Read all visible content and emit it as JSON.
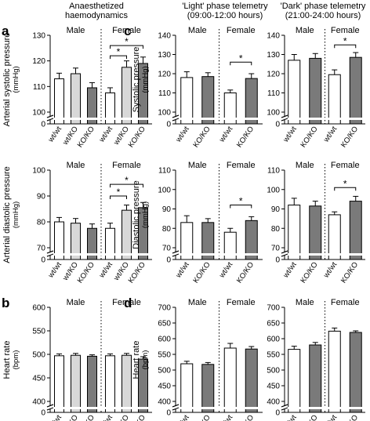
{
  "headers": {
    "col_a": [
      "Anaesthetized",
      "haemodynamics"
    ],
    "col_c_light": [
      "'Light' phase telemetry",
      "(09:00-12:00 hours)"
    ],
    "col_c_dark": [
      "'Dark' phase telemetry",
      "(21:00-24:00 hours)"
    ]
  },
  "colors": {
    "white_bar": "#ffffff",
    "light_bar": "#d8d8d8",
    "dark_bar": "#7a7a7a",
    "axis": "#000000"
  },
  "chart_data": [
    {
      "id": "a-systolic",
      "panel_letter": "a",
      "type": "bar",
      "ylabel": [
        "Arterial systolic pressure",
        "(mmHg)"
      ],
      "ylim": [
        100,
        130
      ],
      "yticks": [
        100,
        110,
        120,
        130
      ],
      "axis_break": true,
      "axis_floor_label": "0",
      "groups": [
        {
          "name": "Male",
          "categories": [
            "wt/wt",
            "wt/KO",
            "KO/KO"
          ],
          "values": [
            113,
            115,
            109.5
          ],
          "errors": [
            2.2,
            2.2,
            2.0
          ],
          "shades": [
            "white",
            "light",
            "dark"
          ]
        },
        {
          "name": "Female",
          "categories": [
            "wt/wt",
            "wt/KO",
            "KO/KO"
          ],
          "values": [
            107.5,
            117.5,
            119
          ],
          "errors": [
            2.0,
            2.5,
            2.5
          ],
          "shades": [
            "white",
            "light",
            "dark"
          ]
        }
      ],
      "significance": [
        {
          "group": 1,
          "from": 0,
          "to": 2,
          "level": 126,
          "label": "*"
        },
        {
          "group": 1,
          "from": 0,
          "to": 1,
          "level": 122,
          "label": "*"
        }
      ]
    },
    {
      "id": "a-diastolic",
      "panel_letter": "",
      "type": "bar",
      "ylabel": [
        "Arterial diastolic pressure",
        "(mmHg)"
      ],
      "ylim": [
        70,
        100
      ],
      "yticks": [
        70,
        80,
        90,
        100
      ],
      "axis_break": true,
      "axis_floor_label": "0",
      "groups": [
        {
          "name": "Male",
          "categories": [
            "wt/wt",
            "wt/KO",
            "KO/KO"
          ],
          "values": [
            80,
            79.5,
            77.5
          ],
          "errors": [
            1.7,
            1.8,
            1.7
          ],
          "shades": [
            "white",
            "light",
            "dark"
          ]
        },
        {
          "name": "Female",
          "categories": [
            "wt/wt",
            "wt/KO",
            "KO/KO"
          ],
          "values": [
            77.5,
            84.5,
            85.5
          ],
          "errors": [
            2.0,
            2.0,
            2.0
          ],
          "shades": [
            "white",
            "light",
            "dark"
          ]
        }
      ],
      "significance": [
        {
          "group": 1,
          "from": 0,
          "to": 2,
          "level": 94.5,
          "label": "*"
        },
        {
          "group": 1,
          "from": 0,
          "to": 1,
          "level": 90,
          "label": "*"
        }
      ]
    },
    {
      "id": "b-heart-rate",
      "panel_letter": "b",
      "type": "bar",
      "ylabel": [
        "Heart rate",
        "(bpm)"
      ],
      "ylim": [
        400,
        600
      ],
      "yticks": [
        400,
        450,
        500,
        550,
        600
      ],
      "axis_break": true,
      "axis_floor_label": "0",
      "groups": [
        {
          "name": "Male",
          "categories": [
            "wt/wt",
            "wt/KO",
            "KO/KO"
          ],
          "values": [
            497,
            498,
            496
          ],
          "errors": [
            4,
            4,
            3
          ],
          "shades": [
            "white",
            "light",
            "dark"
          ]
        },
        {
          "name": "Female",
          "categories": [
            "wt/wt",
            "wt/KO",
            "KO/KO"
          ],
          "values": [
            497,
            498,
            490
          ],
          "errors": [
            4,
            4,
            5
          ],
          "shades": [
            "white",
            "light",
            "dark"
          ]
        }
      ],
      "significance": []
    },
    {
      "id": "c-light-systolic",
      "panel_letter": "c",
      "type": "bar",
      "ylabel": [
        "Systolic pressure",
        "(mmHg)"
      ],
      "ylim": [
        100,
        140
      ],
      "yticks": [
        100,
        110,
        120,
        130,
        140
      ],
      "axis_break": true,
      "axis_floor_label": "0",
      "groups": [
        {
          "name": "Male",
          "categories": [
            "wt/wt",
            "KO/KO"
          ],
          "values": [
            118,
            118.5
          ],
          "errors": [
            3,
            2
          ],
          "shades": [
            "white",
            "dark"
          ]
        },
        {
          "name": "Female",
          "categories": [
            "wt/wt",
            "KO/KO"
          ],
          "values": [
            110,
            117.5
          ],
          "errors": [
            1.5,
            2.5
          ],
          "shades": [
            "white",
            "dark"
          ]
        }
      ],
      "significance": [
        {
          "group": 1,
          "from": 0,
          "to": 1,
          "level": 126,
          "label": "*"
        }
      ]
    },
    {
      "id": "c-dark-systolic",
      "panel_letter": "",
      "type": "bar",
      "ylabel": [],
      "ylim": [
        100,
        140
      ],
      "yticks": [
        100,
        110,
        120,
        130,
        140
      ],
      "axis_break": true,
      "axis_floor_label": "0",
      "groups": [
        {
          "name": "Male",
          "categories": [
            "wt/wt",
            "KO/KO"
          ],
          "values": [
            127,
            128
          ],
          "errors": [
            3,
            2.5
          ],
          "shades": [
            "white",
            "dark"
          ]
        },
        {
          "name": "Female",
          "categories": [
            "wt/wt",
            "KO/KO"
          ],
          "values": [
            119.5,
            128.5
          ],
          "errors": [
            2.5,
            2.5
          ],
          "shades": [
            "white",
            "dark"
          ]
        }
      ],
      "significance": [
        {
          "group": 1,
          "from": 0,
          "to": 1,
          "level": 135,
          "label": "*"
        }
      ]
    },
    {
      "id": "c-light-diastolic",
      "panel_letter": "",
      "type": "bar",
      "ylabel": [
        "Diastolic pressure",
        "(mmHg)"
      ],
      "ylim": [
        70,
        110
      ],
      "yticks": [
        70,
        80,
        90,
        100,
        110
      ],
      "axis_break": true,
      "axis_floor_label": "0",
      "groups": [
        {
          "name": "Male",
          "categories": [
            "wt/wt",
            "KO/KO"
          ],
          "values": [
            83,
            83
          ],
          "errors": [
            3.5,
            2
          ],
          "shades": [
            "white",
            "dark"
          ]
        },
        {
          "name": "Female",
          "categories": [
            "wt/wt",
            "KO/KO"
          ],
          "values": [
            78,
            84
          ],
          "errors": [
            2,
            2
          ],
          "shades": [
            "white",
            "dark"
          ]
        }
      ],
      "significance": [
        {
          "group": 1,
          "from": 0,
          "to": 1,
          "level": 92,
          "label": "*"
        }
      ]
    },
    {
      "id": "c-dark-diastolic",
      "panel_letter": "",
      "type": "bar",
      "ylabel": [],
      "ylim": [
        70,
        110
      ],
      "yticks": [
        70,
        80,
        90,
        100,
        110
      ],
      "axis_break": true,
      "axis_floor_label": "0",
      "groups": [
        {
          "name": "Male",
          "categories": [
            "wt/wt",
            "KO/KO"
          ],
          "values": [
            92,
            91.5
          ],
          "errors": [
            3.5,
            2.5
          ],
          "shades": [
            "white",
            "dark"
          ]
        },
        {
          "name": "Female",
          "categories": [
            "wt/wt",
            "KO/KO"
          ],
          "values": [
            87,
            94
          ],
          "errors": [
            1.5,
            2.5
          ],
          "shades": [
            "white",
            "dark"
          ]
        }
      ],
      "significance": [
        {
          "group": 1,
          "from": 0,
          "to": 1,
          "level": 101,
          "label": "*"
        }
      ]
    },
    {
      "id": "d-light-heart-rate",
      "panel_letter": "d",
      "type": "bar",
      "ylabel": [
        "Heart rate",
        "(bpm)"
      ],
      "ylim": [
        400,
        700
      ],
      "yticks": [
        400,
        450,
        500,
        550,
        600,
        650,
        700
      ],
      "axis_break": true,
      "axis_floor_label": "0",
      "groups": [
        {
          "name": "Male",
          "categories": [
            "wt/wt",
            "KO/KO"
          ],
          "values": [
            520,
            518
          ],
          "errors": [
            8,
            6
          ],
          "shades": [
            "white",
            "dark"
          ]
        },
        {
          "name": "Female",
          "categories": [
            "wt/wt",
            "KO/KO"
          ],
          "values": [
            570,
            567
          ],
          "errors": [
            15,
            8
          ],
          "shades": [
            "white",
            "dark"
          ]
        }
      ],
      "significance": []
    },
    {
      "id": "d-dark-heart-rate",
      "panel_letter": "",
      "type": "bar",
      "ylabel": [],
      "ylim": [
        400,
        700
      ],
      "yticks": [
        400,
        450,
        500,
        550,
        600,
        650,
        700
      ],
      "axis_break": true,
      "axis_floor_label": "0",
      "groups": [
        {
          "name": "Male",
          "categories": [
            "wt/wt",
            "KO/KO"
          ],
          "values": [
            566,
            580
          ],
          "errors": [
            10,
            8
          ],
          "shades": [
            "white",
            "dark"
          ]
        },
        {
          "name": "Female",
          "categories": [
            "wt/wt",
            "KO/KO"
          ],
          "values": [
            624,
            620
          ],
          "errors": [
            10,
            5
          ],
          "shades": [
            "white",
            "dark"
          ]
        }
      ],
      "significance": []
    }
  ]
}
